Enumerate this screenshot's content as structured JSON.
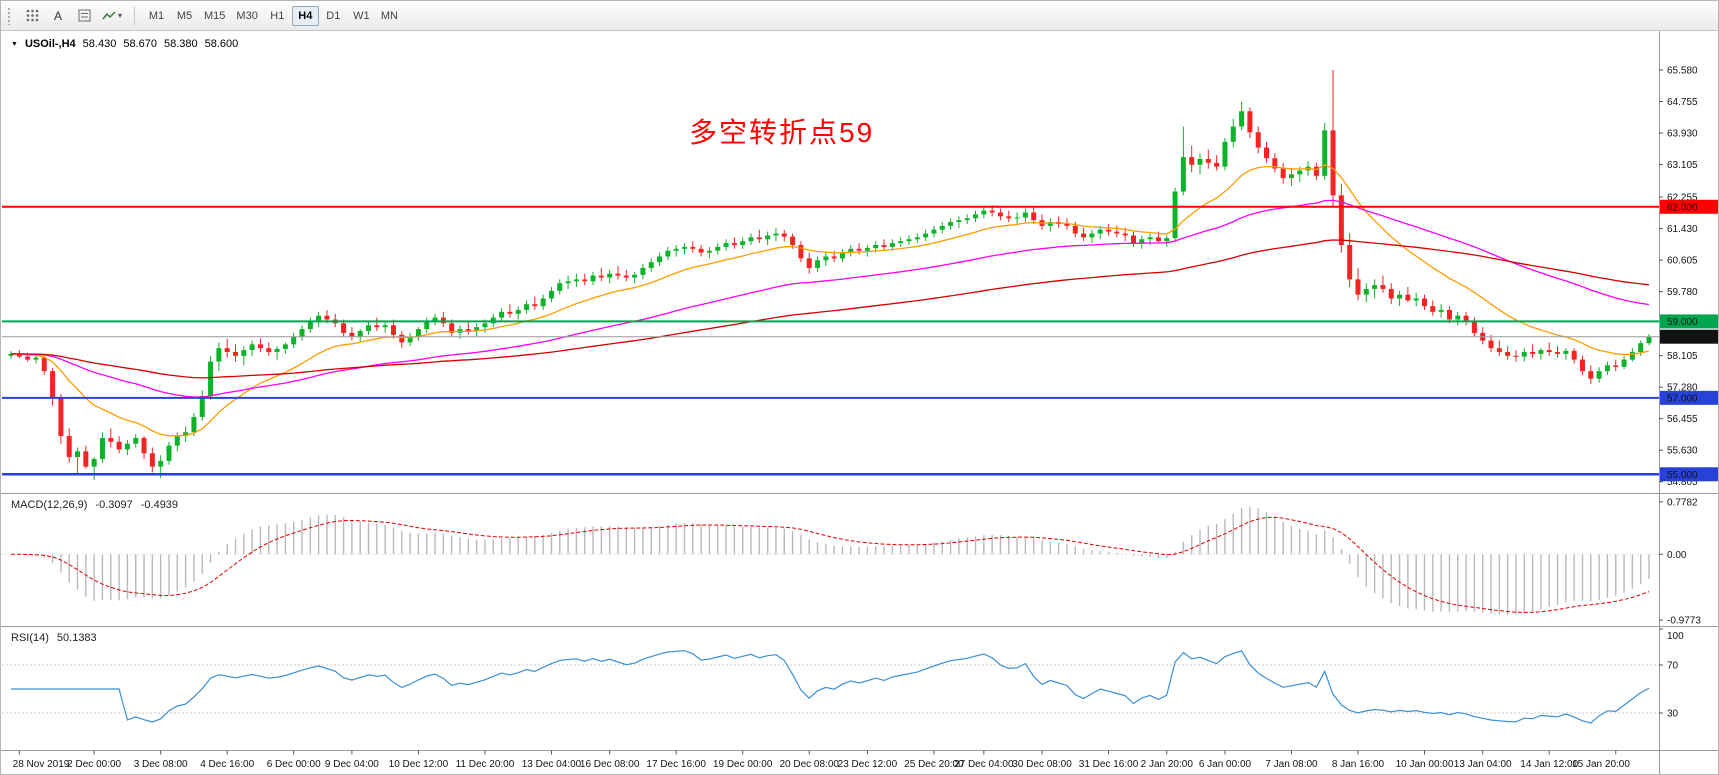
{
  "toolbar": {
    "cursor_label": "A",
    "timeframes": [
      "M1",
      "M5",
      "M15",
      "M30",
      "H1",
      "H4",
      "D1",
      "W1",
      "MN"
    ],
    "active_timeframe": "H4"
  },
  "colors": {
    "candle_up": "#0eb32b",
    "candle_down": "#f32424",
    "price_line": "#9a9a9a",
    "grid": "#e7e7e7"
  },
  "chart_data": {
    "type": "candlestick",
    "symbol_header": {
      "symbol_period": "USOil-,H4",
      "open": "58.430",
      "high": "58.670",
      "low": "58.380",
      "close": "58.600"
    },
    "annotation": {
      "text": "多空转折点59",
      "color": "#ff0000"
    },
    "price_ticks": [
      "65.580",
      "64.755",
      "63.930",
      "63.105",
      "62.255",
      "61.430",
      "60.605",
      "59.780",
      "58.105",
      "57.280",
      "56.455",
      "55.630",
      "54.805"
    ],
    "levels": [
      {
        "price": 62.0,
        "label": "62.000",
        "color": "#ff0000",
        "width": 2
      },
      {
        "price": 59.0,
        "label": "59.000",
        "color": "#00a550",
        "width": 2
      },
      {
        "price": 57.0,
        "label": "57.000",
        "color": "#2742d6",
        "width": 2
      },
      {
        "price": 55.0,
        "label": "55.000",
        "color": "#2742d6",
        "width": 2.5
      }
    ],
    "current_price": {
      "value": 58.6,
      "label": "58.600",
      "badge_color": "#111111"
    },
    "moving_averages": [
      {
        "name": "fast",
        "period": 16,
        "color": "#ff9c00"
      },
      {
        "name": "mid",
        "period": 56,
        "color": "#ff00ff"
      },
      {
        "name": "slow",
        "period": 120,
        "color": "#d40000"
      }
    ],
    "indicators": {
      "macd": {
        "label": "MACD(12,26,9)",
        "value": "-0.3097",
        "signal_value": "-0.4939",
        "axis_labels": [
          "0.7782",
          "0.00",
          "-0.9773"
        ],
        "hist_color": "#b9b9b9",
        "signal_color": "#e00000"
      },
      "rsi": {
        "label": "RSI(14)",
        "value": "50.1383",
        "axis_labels": [
          "100",
          "70",
          "30"
        ],
        "line_color": "#3b8fd4"
      }
    },
    "time_labels": [
      {
        "text": "28 Nov 2019",
        "candle": 1
      },
      {
        "text": "2 Dec 00:00",
        "candle": 10
      },
      {
        "text": "3 Dec 08:00",
        "candle": 18
      },
      {
        "text": "4 Dec 16:00",
        "candle": 26
      },
      {
        "text": "6 Dec 00:00",
        "candle": 34
      },
      {
        "text": "9 Dec 04:00",
        "candle": 41
      },
      {
        "text": "10 Dec 12:00",
        "candle": 49
      },
      {
        "text": "11 Dec 20:00",
        "candle": 57
      },
      {
        "text": "13 Dec 04:00",
        "candle": 65
      },
      {
        "text": "16 Dec 08:00",
        "candle": 72
      },
      {
        "text": "17 Dec 16:00",
        "candle": 80
      },
      {
        "text": "19 Dec 00:00",
        "candle": 88
      },
      {
        "text": "20 Dec 08:00",
        "candle": 96
      },
      {
        "text": "23 Dec 12:00",
        "candle": 103
      },
      {
        "text": "25 Dec 20:00",
        "candle": 111
      },
      {
        "text": "27 Dec 04:00",
        "candle": 117
      },
      {
        "text": "30 Dec 08:00",
        "candle": 124
      },
      {
        "text": "31 Dec 16:00",
        "candle": 132
      },
      {
        "text": "2 Jan 20:00",
        "candle": 139
      },
      {
        "text": "6 Jan 00:00",
        "candle": 146
      },
      {
        "text": "7 Jan 08:00",
        "candle": 154
      },
      {
        "text": "8 Jan 16:00",
        "candle": 162
      },
      {
        "text": "10 Jan 00:00",
        "candle": 170
      },
      {
        "text": "13 Jan 04:00",
        "candle": 177
      },
      {
        "text": "14 Jan 12:00",
        "candle": 185
      },
      {
        "text": "15 Jan 20:00",
        "candle": 193
      }
    ],
    "candles": [
      [
        58.1,
        58.22,
        58.02,
        58.15
      ],
      [
        58.15,
        58.25,
        58.05,
        58.08
      ],
      [
        58.08,
        58.18,
        57.95,
        58.0
      ],
      [
        58.0,
        58.12,
        57.9,
        58.05
      ],
      [
        58.05,
        58.1,
        57.6,
        57.7
      ],
      [
        57.7,
        57.78,
        56.8,
        57.0
      ],
      [
        57.0,
        57.1,
        55.8,
        56.0
      ],
      [
        56.0,
        56.2,
        55.3,
        55.45
      ],
      [
        55.45,
        55.7,
        55.0,
        55.6
      ],
      [
        55.6,
        55.75,
        55.15,
        55.2
      ],
      [
        55.2,
        55.45,
        54.85,
        55.4
      ],
      [
        55.4,
        56.1,
        55.3,
        55.95
      ],
      [
        55.95,
        56.2,
        55.7,
        55.85
      ],
      [
        55.85,
        56.0,
        55.55,
        55.65
      ],
      [
        55.65,
        55.9,
        55.5,
        55.8
      ],
      [
        55.8,
        56.05,
        55.7,
        55.95
      ],
      [
        55.95,
        56.0,
        55.4,
        55.55
      ],
      [
        55.55,
        55.7,
        55.05,
        55.2
      ],
      [
        55.2,
        55.5,
        54.9,
        55.35
      ],
      [
        55.35,
        55.85,
        55.25,
        55.75
      ],
      [
        55.75,
        56.1,
        55.6,
        56.0
      ],
      [
        56.0,
        56.25,
        55.85,
        56.1
      ],
      [
        56.1,
        56.6,
        56.0,
        56.5
      ],
      [
        56.5,
        57.2,
        56.4,
        57.05
      ],
      [
        57.05,
        58.1,
        56.95,
        57.95
      ],
      [
        57.95,
        58.45,
        57.7,
        58.3
      ],
      [
        58.3,
        58.55,
        58.05,
        58.2
      ],
      [
        58.2,
        58.4,
        57.95,
        58.1
      ],
      [
        58.1,
        58.35,
        57.85,
        58.25
      ],
      [
        58.25,
        58.5,
        58.1,
        58.4
      ],
      [
        58.4,
        58.55,
        58.2,
        58.3
      ],
      [
        58.3,
        58.45,
        58.1,
        58.2
      ],
      [
        58.2,
        58.35,
        58.0,
        58.28
      ],
      [
        58.28,
        58.45,
        58.15,
        58.4
      ],
      [
        58.4,
        58.7,
        58.3,
        58.6
      ],
      [
        58.6,
        58.9,
        58.5,
        58.8
      ],
      [
        58.8,
        59.1,
        58.7,
        59.0
      ],
      [
        59.0,
        59.25,
        58.85,
        59.15
      ],
      [
        59.15,
        59.3,
        58.95,
        59.05
      ],
      [
        59.05,
        59.2,
        58.85,
        58.95
      ],
      [
        58.95,
        59.05,
        58.6,
        58.7
      ],
      [
        58.7,
        58.85,
        58.5,
        58.6
      ],
      [
        58.6,
        58.8,
        58.45,
        58.75
      ],
      [
        58.75,
        59.0,
        58.65,
        58.9
      ],
      [
        58.9,
        59.1,
        58.75,
        58.85
      ],
      [
        58.85,
        59.0,
        58.7,
        58.9
      ],
      [
        58.9,
        59.05,
        58.55,
        58.65
      ],
      [
        58.65,
        58.75,
        58.3,
        58.45
      ],
      [
        58.45,
        58.7,
        58.35,
        58.6
      ],
      [
        58.6,
        58.85,
        58.5,
        58.8
      ],
      [
        58.8,
        59.1,
        58.7,
        59.0
      ],
      [
        59.0,
        59.2,
        58.9,
        59.1
      ],
      [
        59.1,
        59.25,
        58.85,
        58.95
      ],
      [
        58.95,
        59.05,
        58.6,
        58.7
      ],
      [
        58.7,
        58.9,
        58.55,
        58.8
      ],
      [
        58.8,
        59.0,
        58.65,
        58.75
      ],
      [
        58.75,
        58.95,
        58.6,
        58.85
      ],
      [
        58.85,
        59.05,
        58.7,
        58.95
      ],
      [
        58.95,
        59.2,
        58.85,
        59.1
      ],
      [
        59.1,
        59.35,
        59.0,
        59.25
      ],
      [
        59.25,
        59.45,
        59.1,
        59.2
      ],
      [
        59.2,
        59.4,
        59.05,
        59.3
      ],
      [
        59.3,
        59.55,
        59.2,
        59.45
      ],
      [
        59.45,
        59.65,
        59.3,
        59.4
      ],
      [
        59.4,
        59.7,
        59.3,
        59.6
      ],
      [
        59.6,
        59.9,
        59.5,
        59.8
      ],
      [
        59.8,
        60.1,
        59.7,
        60.0
      ],
      [
        60.0,
        60.2,
        59.85,
        60.05
      ],
      [
        60.05,
        60.25,
        59.9,
        60.1
      ],
      [
        60.1,
        60.25,
        59.95,
        60.05
      ],
      [
        60.05,
        60.3,
        59.95,
        60.2
      ],
      [
        60.2,
        60.4,
        60.05,
        60.15
      ],
      [
        60.15,
        60.35,
        60.0,
        60.25
      ],
      [
        60.25,
        60.45,
        60.1,
        60.2
      ],
      [
        60.2,
        60.35,
        60.05,
        60.15
      ],
      [
        60.15,
        60.3,
        60.0,
        60.22
      ],
      [
        60.22,
        60.5,
        60.1,
        60.4
      ],
      [
        60.4,
        60.65,
        60.3,
        60.55
      ],
      [
        60.55,
        60.8,
        60.45,
        60.7
      ],
      [
        60.7,
        60.95,
        60.6,
        60.85
      ],
      [
        60.85,
        61.0,
        60.7,
        60.9
      ],
      [
        60.9,
        61.05,
        60.75,
        60.95
      ],
      [
        60.95,
        61.1,
        60.8,
        60.9
      ],
      [
        60.9,
        61.0,
        60.7,
        60.8
      ],
      [
        60.8,
        60.95,
        60.65,
        60.85
      ],
      [
        60.85,
        61.05,
        60.75,
        60.95
      ],
      [
        60.95,
        61.15,
        60.85,
        61.05
      ],
      [
        61.05,
        61.2,
        60.9,
        61.0
      ],
      [
        61.0,
        61.2,
        60.9,
        61.1
      ],
      [
        61.1,
        61.3,
        61.0,
        61.2
      ],
      [
        61.2,
        61.4,
        61.05,
        61.15
      ],
      [
        61.15,
        61.35,
        61.0,
        61.25
      ],
      [
        61.25,
        61.45,
        61.1,
        61.3
      ],
      [
        61.3,
        61.4,
        61.1,
        61.22
      ],
      [
        61.22,
        61.3,
        60.9,
        61.0
      ],
      [
        61.0,
        61.1,
        60.55,
        60.65
      ],
      [
        60.65,
        60.8,
        60.25,
        60.4
      ],
      [
        60.4,
        60.7,
        60.3,
        60.6
      ],
      [
        60.6,
        60.8,
        60.45,
        60.7
      ],
      [
        60.7,
        60.85,
        60.55,
        60.65
      ],
      [
        60.65,
        60.9,
        60.55,
        60.8
      ],
      [
        60.8,
        61.0,
        60.7,
        60.9
      ],
      [
        60.9,
        61.05,
        60.75,
        60.85
      ],
      [
        60.85,
        61.0,
        60.7,
        60.92
      ],
      [
        60.92,
        61.1,
        60.8,
        61.0
      ],
      [
        61.0,
        61.15,
        60.85,
        60.95
      ],
      [
        60.95,
        61.15,
        60.85,
        61.05
      ],
      [
        61.05,
        61.2,
        60.95,
        61.1
      ],
      [
        61.1,
        61.25,
        61.0,
        61.15
      ],
      [
        61.15,
        61.3,
        61.05,
        61.2
      ],
      [
        61.2,
        61.4,
        61.1,
        61.3
      ],
      [
        61.3,
        61.5,
        61.2,
        61.4
      ],
      [
        61.4,
        61.6,
        61.3,
        61.5
      ],
      [
        61.5,
        61.7,
        61.4,
        61.6
      ],
      [
        61.6,
        61.75,
        61.45,
        61.65
      ],
      [
        61.65,
        61.8,
        61.55,
        61.7
      ],
      [
        61.7,
        61.9,
        61.6,
        61.8
      ],
      [
        61.8,
        62.0,
        61.7,
        61.9
      ],
      [
        61.9,
        62.05,
        61.75,
        61.85
      ],
      [
        61.85,
        61.95,
        61.65,
        61.75
      ],
      [
        61.75,
        61.9,
        61.6,
        61.7
      ],
      [
        61.7,
        61.85,
        61.55,
        61.72
      ],
      [
        61.72,
        61.95,
        61.6,
        61.85
      ],
      [
        61.85,
        62.0,
        61.55,
        61.65
      ],
      [
        61.65,
        61.8,
        61.4,
        61.5
      ],
      [
        61.5,
        61.7,
        61.35,
        61.6
      ],
      [
        61.6,
        61.75,
        61.45,
        61.55
      ],
      [
        61.55,
        61.7,
        61.4,
        61.5
      ],
      [
        61.5,
        61.6,
        61.2,
        61.3
      ],
      [
        61.3,
        61.45,
        61.1,
        61.2
      ],
      [
        61.2,
        61.4,
        61.05,
        61.3
      ],
      [
        61.3,
        61.5,
        61.15,
        61.4
      ],
      [
        61.4,
        61.55,
        61.25,
        61.35
      ],
      [
        61.35,
        61.5,
        61.2,
        61.3
      ],
      [
        61.3,
        61.45,
        61.1,
        61.25
      ],
      [
        61.25,
        61.35,
        60.95,
        61.05
      ],
      [
        61.05,
        61.25,
        60.9,
        61.15
      ],
      [
        61.15,
        61.3,
        61.0,
        61.2
      ],
      [
        61.2,
        61.35,
        61.05,
        61.1
      ],
      [
        61.1,
        61.25,
        60.95,
        61.18
      ],
      [
        61.18,
        62.5,
        61.1,
        62.4
      ],
      [
        62.4,
        64.1,
        62.3,
        63.3
      ],
      [
        63.3,
        63.6,
        62.9,
        63.1
      ],
      [
        63.1,
        63.4,
        62.85,
        63.25
      ],
      [
        63.25,
        63.5,
        63.0,
        63.15
      ],
      [
        63.15,
        63.35,
        62.95,
        63.05
      ],
      [
        63.05,
        63.8,
        62.95,
        63.7
      ],
      [
        63.7,
        64.3,
        63.55,
        64.1
      ],
      [
        64.1,
        64.75,
        64.0,
        64.5
      ],
      [
        64.5,
        64.6,
        63.8,
        63.95
      ],
      [
        63.95,
        64.1,
        63.4,
        63.55
      ],
      [
        63.55,
        63.7,
        63.15,
        63.27
      ],
      [
        63.27,
        63.4,
        62.9,
        63.0
      ],
      [
        63.0,
        63.15,
        62.6,
        62.75
      ],
      [
        62.75,
        63.0,
        62.55,
        62.85
      ],
      [
        62.85,
        63.05,
        62.65,
        62.95
      ],
      [
        62.95,
        63.2,
        62.8,
        63.05
      ],
      [
        63.05,
        63.15,
        62.7,
        62.81
      ],
      [
        62.81,
        64.2,
        62.7,
        64.0
      ],
      [
        64.0,
        65.58,
        62.0,
        62.3
      ],
      [
        62.3,
        62.6,
        60.8,
        61.0
      ],
      [
        61.0,
        61.3,
        59.9,
        60.1
      ],
      [
        60.1,
        60.4,
        59.55,
        59.7
      ],
      [
        59.7,
        60.0,
        59.5,
        59.85
      ],
      [
        59.85,
        60.1,
        59.6,
        59.95
      ],
      [
        59.95,
        60.2,
        59.75,
        59.85
      ],
      [
        59.85,
        60.0,
        59.45,
        59.6
      ],
      [
        59.6,
        59.8,
        59.4,
        59.7
      ],
      [
        59.7,
        59.9,
        59.5,
        59.55
      ],
      [
        59.55,
        59.75,
        59.4,
        59.6
      ],
      [
        59.6,
        59.7,
        59.3,
        59.4
      ],
      [
        59.4,
        59.55,
        59.15,
        59.25
      ],
      [
        59.25,
        59.45,
        59.1,
        59.3
      ],
      [
        59.3,
        59.4,
        58.95,
        59.05
      ],
      [
        59.05,
        59.25,
        58.9,
        59.15
      ],
      [
        59.15,
        59.25,
        58.9,
        59.0
      ],
      [
        59.0,
        59.1,
        58.6,
        58.7
      ],
      [
        58.7,
        58.85,
        58.4,
        58.5
      ],
      [
        58.5,
        58.65,
        58.2,
        58.3
      ],
      [
        58.3,
        58.5,
        58.1,
        58.2
      ],
      [
        58.2,
        58.35,
        58.0,
        58.1
      ],
      [
        58.1,
        58.25,
        57.95,
        58.08
      ],
      [
        58.08,
        58.3,
        57.95,
        58.2
      ],
      [
        58.2,
        58.4,
        58.05,
        58.15
      ],
      [
        58.15,
        58.3,
        58.0,
        58.25
      ],
      [
        58.25,
        58.45,
        58.1,
        58.2
      ],
      [
        58.2,
        58.35,
        58.05,
        58.15
      ],
      [
        58.15,
        58.3,
        58.0,
        58.23
      ],
      [
        58.23,
        58.3,
        57.9,
        58.0
      ],
      [
        58.0,
        58.1,
        57.6,
        57.7
      ],
      [
        57.7,
        57.85,
        57.36,
        57.5
      ],
      [
        57.5,
        57.8,
        57.4,
        57.7
      ],
      [
        57.7,
        57.95,
        57.6,
        57.85
      ],
      [
        57.85,
        58.0,
        57.7,
        57.81
      ],
      [
        57.81,
        58.1,
        57.75,
        58.0
      ],
      [
        58.0,
        58.3,
        57.95,
        58.2
      ],
      [
        58.2,
        58.5,
        58.1,
        58.43
      ],
      [
        58.43,
        58.67,
        58.38,
        58.6
      ]
    ]
  }
}
